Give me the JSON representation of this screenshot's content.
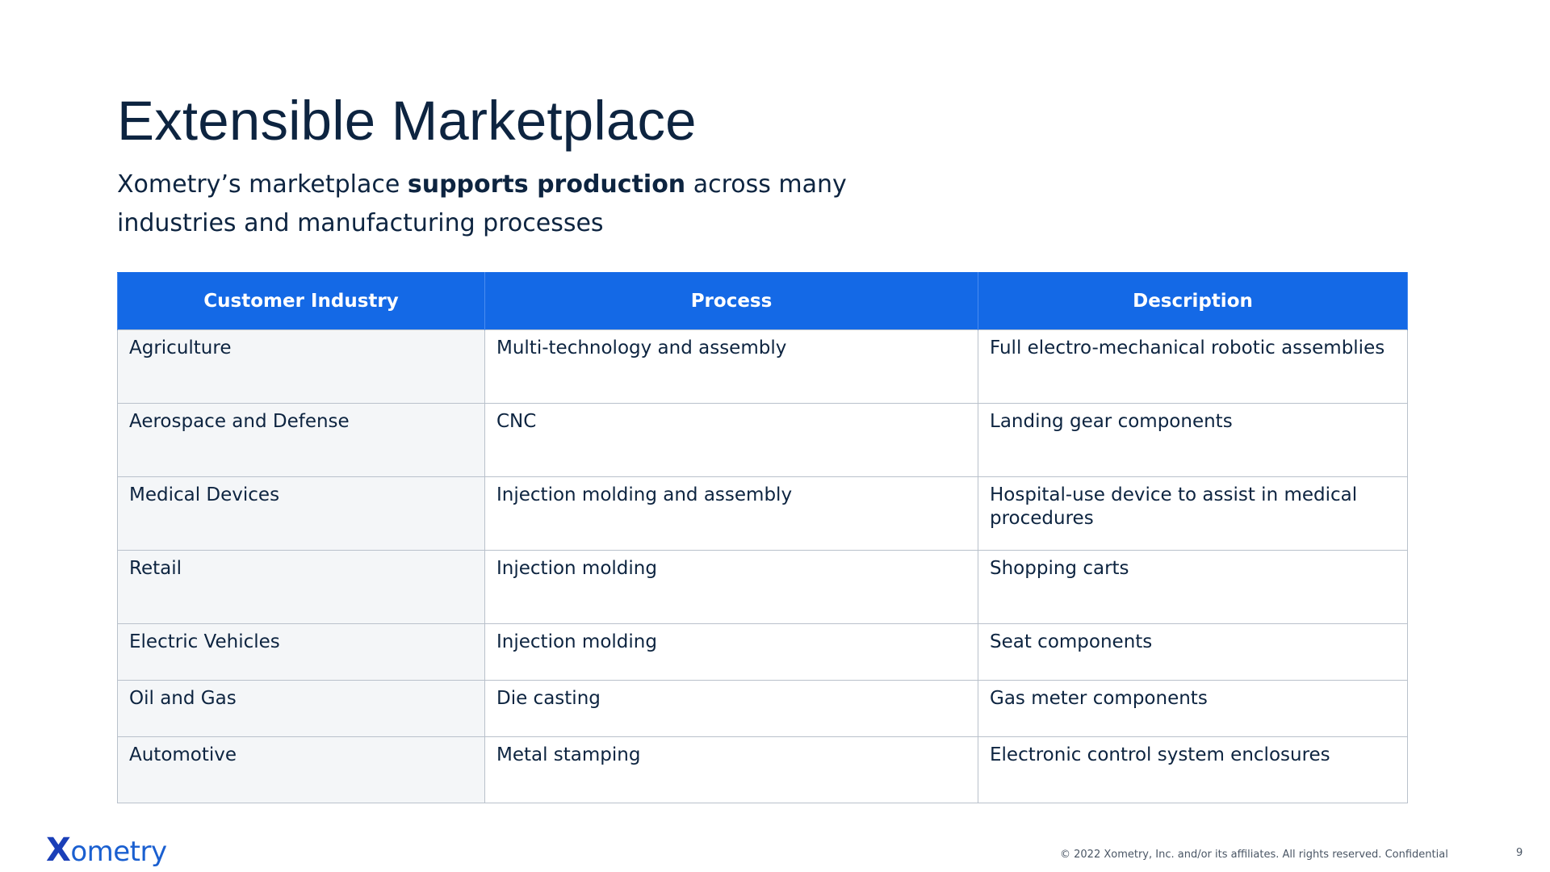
{
  "slide": {
    "title": "Extensible Marketplace",
    "subtitle_pre": "Xometry’s marketplace ",
    "subtitle_bold": "supports production",
    "subtitle_post": " across many industries and manufacturing processes"
  },
  "table": {
    "headers": [
      "Customer Industry",
      "Process",
      "Description"
    ],
    "rows": [
      [
        "Agriculture",
        "Multi-technology and assembly",
        "Full electro-mechanical robotic assemblies"
      ],
      [
        "Aerospace and Defense",
        "CNC",
        "Landing gear components"
      ],
      [
        "Medical Devices",
        "Injection molding and assembly",
        "Hospital-use device to assist in medical procedures"
      ],
      [
        "Retail",
        "Injection molding",
        "Shopping carts"
      ],
      [
        "Electric Vehicles",
        "Injection molding",
        "Seat components"
      ],
      [
        "Oil and Gas",
        "Die casting",
        "Gas meter components"
      ],
      [
        "Automotive",
        "Metal stamping",
        "Electronic control system enclosures"
      ]
    ]
  },
  "footer": {
    "logo_x": "X",
    "logo_rest": "ometry",
    "copyright": "© 2022  Xometry, Inc. and/or its affiliates. All rights reserved. Confidential",
    "page_number": "9"
  },
  "colors": {
    "header_bg": "#1469e6",
    "title_text": "#0d2440",
    "first_col_bg": "#f4f6f8",
    "logo": "#1a5fd0"
  }
}
